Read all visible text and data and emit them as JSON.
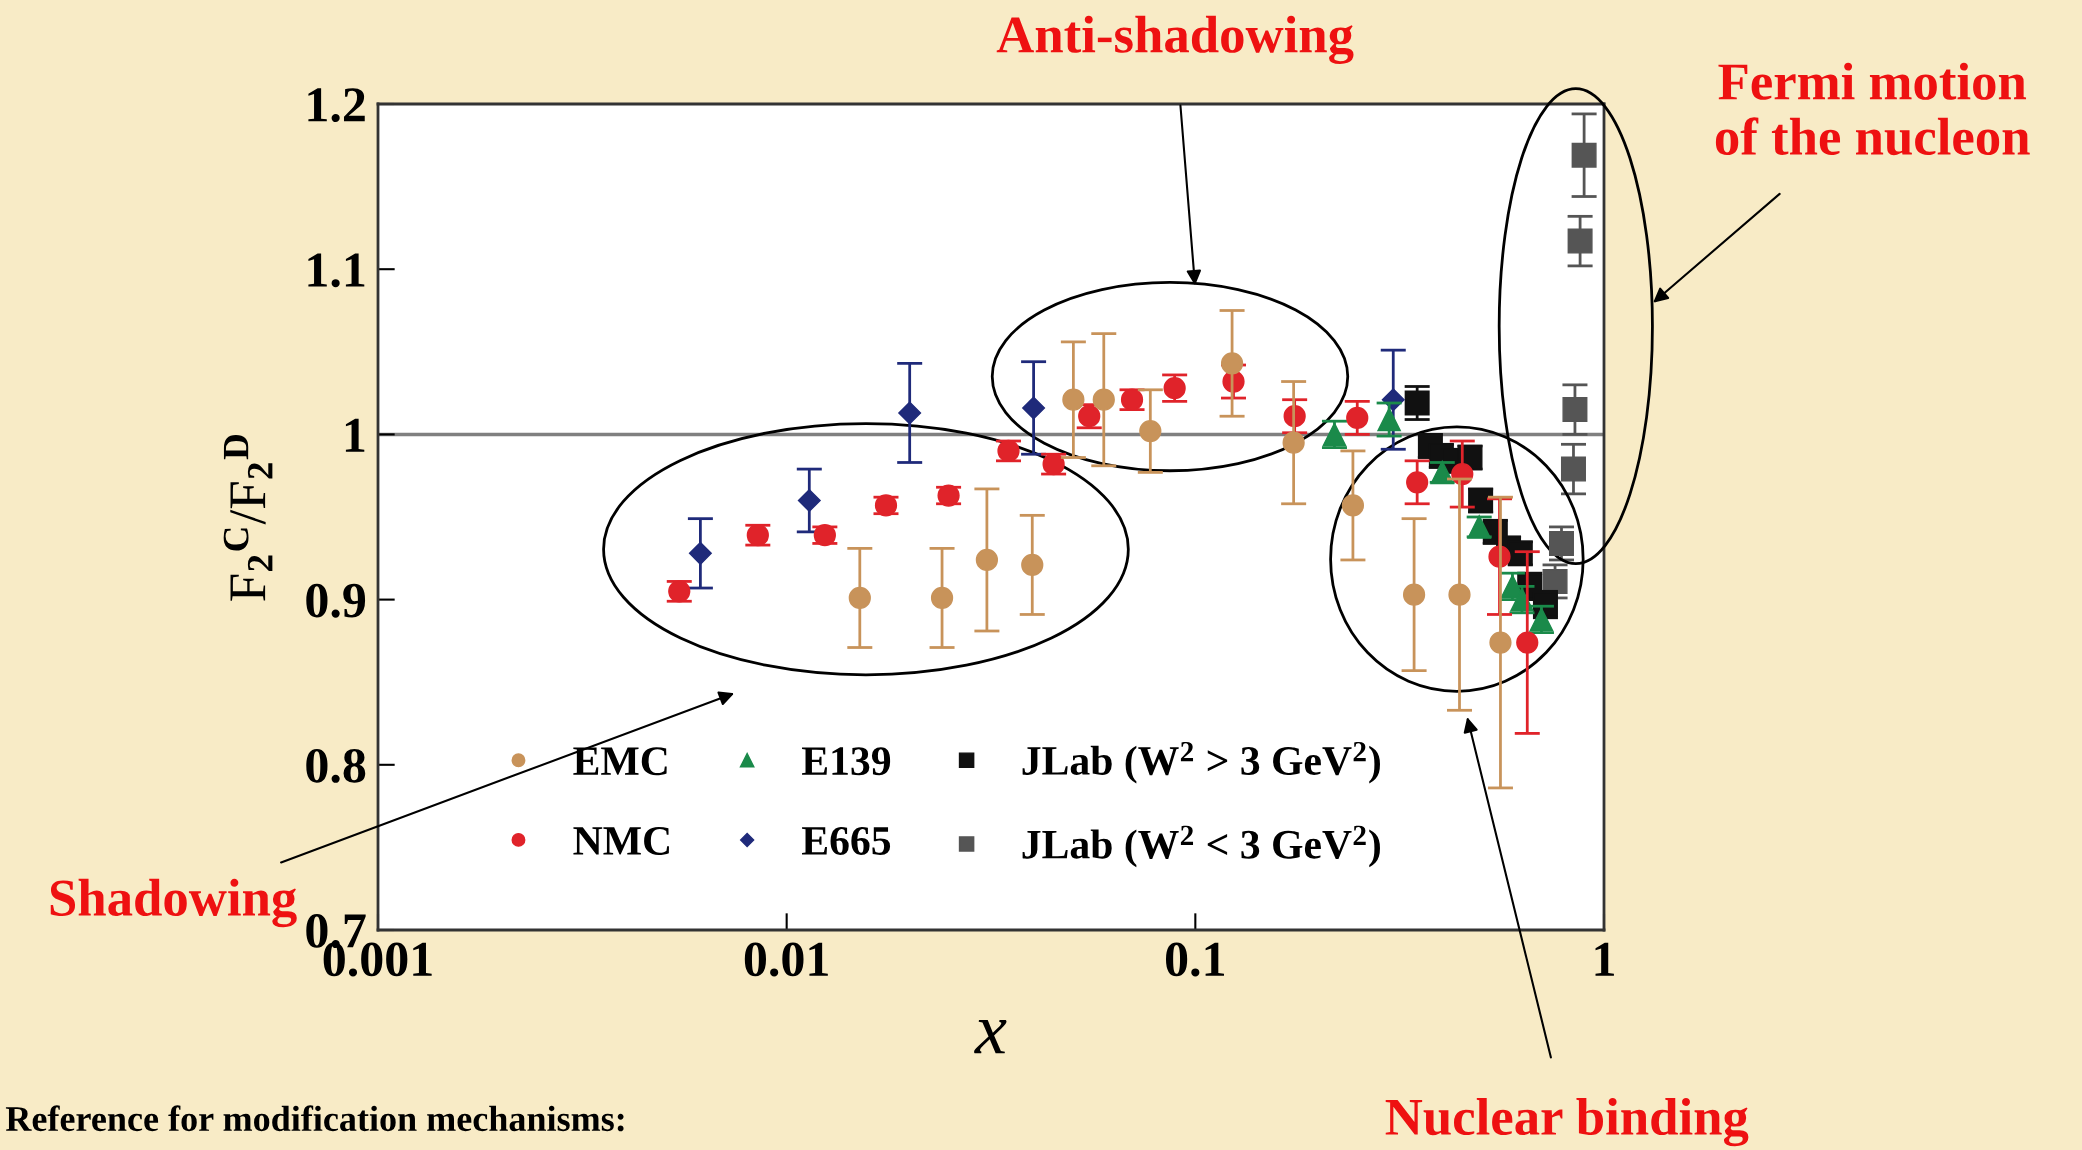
{
  "chart_data": {
    "type": "scatter",
    "ylabel": "F$_{2}$$^{C}$/F$_{2}$$^{D}$",
    "xlabel": "x",
    "log": "x",
    "xlim": [
      0.001,
      1
    ],
    "ylim": [
      0.7,
      1.2
    ],
    "xticks": [
      0.001,
      0.01,
      0.1,
      1
    ],
    "yticks": [
      0.7,
      0.8,
      0.9,
      1,
      1.1,
      1.2
    ],
    "grid": false,
    "legend": "bottom left",
    "ref_lines": [
      {
        "axis": "y",
        "value": 1,
        "color": "#808080"
      }
    ],
    "annotations": [
      "Anti-shadowing",
      "Fermi motion\nof the nucleon",
      "Shadowing",
      "Nuclear binding",
      "Reference for modification mechanisms:"
    ],
    "series": [
      {
        "name": "EMC",
        "color": "#c8935a",
        "marker": "circle",
        "x": [
          0.0151,
          0.024,
          0.0309,
          0.0399,
          0.0503,
          0.0597,
          0.0776,
          0.123,
          0.174,
          0.243,
          0.343,
          0.443,
          0.558
        ],
        "values": [
          0.901,
          0.901,
          0.924,
          0.921,
          1.021,
          1.021,
          1.002,
          1.043,
          0.995,
          0.957,
          0.903,
          0.903,
          0.874
        ],
        "errors": [
          0.03,
          0.03,
          0.043,
          0.03,
          0.035,
          0.04,
          0.025,
          0.032,
          0.037,
          0.033,
          0.046,
          0.07,
          0.088
        ]
      },
      {
        "name": "NMC",
        "color": "#e0232a",
        "marker": "circle",
        "x": [
          0.00546,
          0.0085,
          0.0124,
          0.0175,
          0.0249,
          0.0349,
          0.045,
          0.055,
          0.07,
          0.089,
          0.124,
          0.175,
          0.249,
          0.349,
          0.45,
          0.555,
          0.649
        ],
        "values": [
          0.905,
          0.939,
          0.939,
          0.957,
          0.963,
          0.99,
          0.982,
          1.011,
          1.021,
          1.028,
          1.032,
          1.011,
          1.01,
          0.971,
          0.976,
          0.926,
          0.874
        ],
        "errors": [
          0.006,
          0.006,
          0.005,
          0.005,
          0.005,
          0.006,
          0.006,
          0.007,
          0.006,
          0.008,
          0.01,
          0.01,
          0.01,
          0.013,
          0.02,
          0.035,
          0.055
        ]
      },
      {
        "name": "E139",
        "color": "#1a8a4a",
        "marker": "triangle",
        "x": [
          0.219,
          0.298,
          0.402,
          0.495,
          0.597,
          0.63,
          0.703
        ],
        "values": [
          1.0,
          1.009,
          0.977,
          0.944,
          0.908,
          0.9,
          0.888
        ],
        "errors": [
          0.008,
          0.01,
          0.006,
          0.006,
          0.008,
          0.008,
          0.008
        ]
      },
      {
        "name": "E665",
        "color": "#1f2a7a",
        "marker": "diamond",
        "x": [
          0.00615,
          0.01136,
          0.02,
          0.0402,
          0.305
        ],
        "values": [
          0.928,
          0.96,
          1.013,
          1.016,
          1.021
        ],
        "errors": [
          0.021,
          0.019,
          0.03,
          0.028,
          0.03
        ]
      },
      {
        "name": "JLab (W$^{2}$ > 3 GeV$^{2}$)",
        "color": "#111111",
        "marker": "square",
        "x": [
          0.349,
          0.376,
          0.4,
          0.43,
          0.47,
          0.499,
          0.542,
          0.584,
          0.624,
          0.658,
          0.719
        ],
        "values": [
          1.019,
          0.993,
          0.987,
          0.984,
          0.986,
          0.96,
          0.941,
          0.931,
          0.928,
          0.908,
          0.897
        ],
        "errors": [
          0.01,
          0.007,
          0.007,
          0.007,
          0.007,
          0.007,
          0.007,
          0.007,
          0.007,
          0.008,
          0.008
        ]
      },
      {
        "name": "JLab (W$^{2}$ < 3 GeV$^{2}$)",
        "color": "#555555",
        "marker": "square",
        "x": [
          0.759,
          0.787,
          0.842,
          0.849,
          0.874,
          0.894
        ],
        "values": [
          0.911,
          0.934,
          0.979,
          1.015,
          1.117,
          1.169
        ],
        "errors": [
          0.01,
          0.01,
          0.015,
          0.015,
          0.015,
          0.025
        ]
      }
    ]
  }
}
